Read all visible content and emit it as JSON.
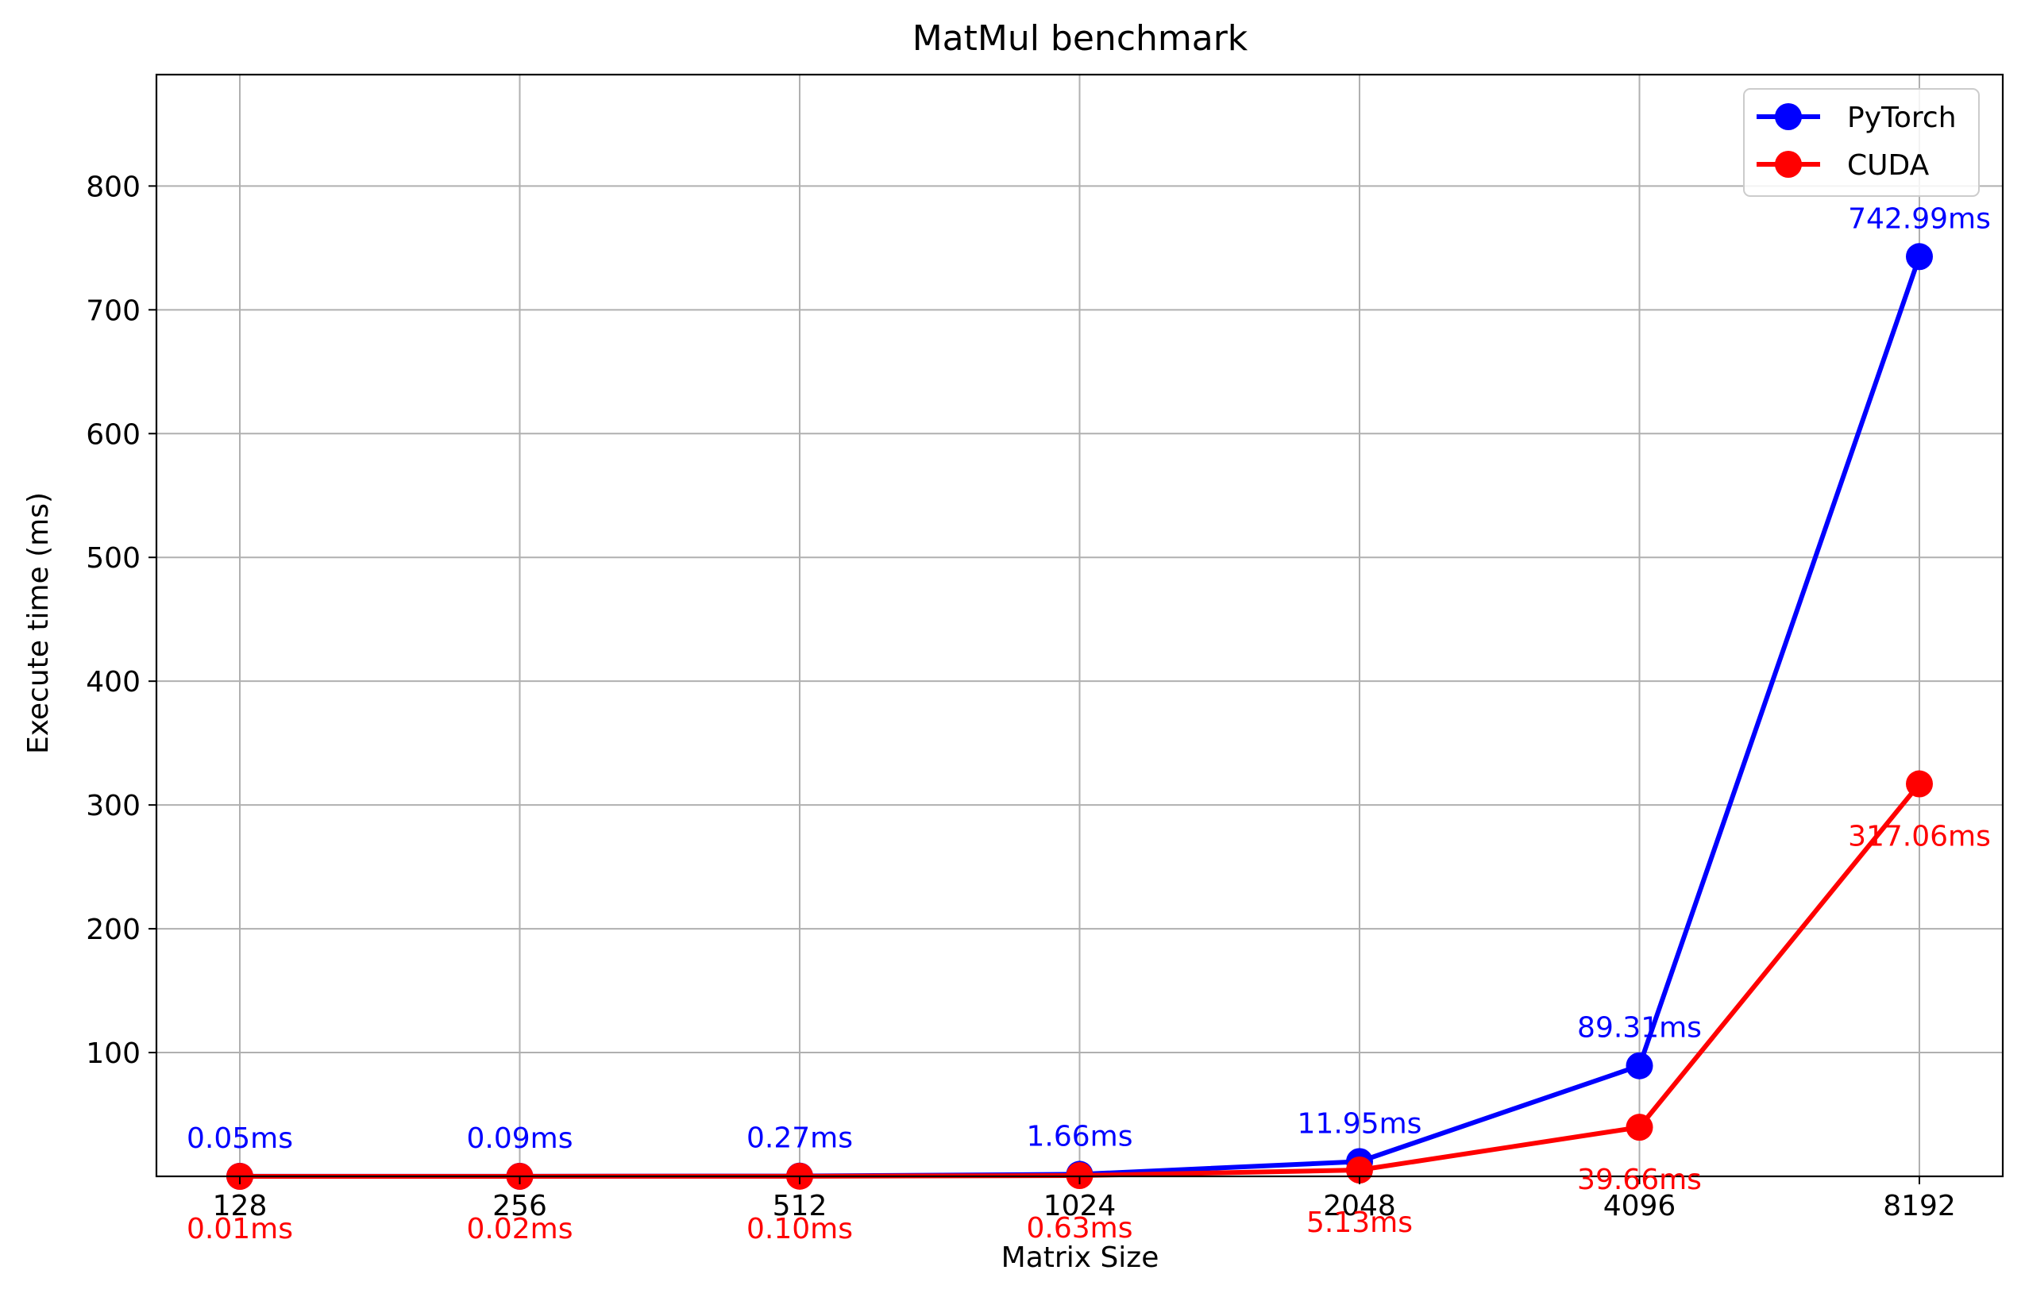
{
  "chart_data": {
    "type": "line",
    "title": "MatMul benchmark",
    "xlabel": "Matrix Size",
    "ylabel": "Execute time (ms)",
    "categories": [
      "128",
      "256",
      "512",
      "1024",
      "2048",
      "4096",
      "8192"
    ],
    "ylim": [
      0,
      890
    ],
    "yticks": [
      100,
      200,
      300,
      400,
      500,
      600,
      700,
      800
    ],
    "grid": true,
    "legend_position": "top-right",
    "series": [
      {
        "name": "PyTorch",
        "color": "#0000ff",
        "values": [
          0.05,
          0.09,
          0.27,
          1.66,
          11.95,
          89.31,
          742.99
        ],
        "labels": [
          "0.05ms",
          "0.09ms",
          "0.27ms",
          "1.66ms",
          "11.95ms",
          "89.31ms",
          "742.99ms"
        ],
        "label_placement": "above"
      },
      {
        "name": "CUDA",
        "color": "#ff0000",
        "values": [
          0.01,
          0.02,
          0.1,
          0.63,
          5.13,
          39.66,
          317.06
        ],
        "labels": [
          "0.01ms",
          "0.02ms",
          "0.10ms",
          "0.63ms",
          "5.13ms",
          "39.66ms",
          "317.06ms"
        ],
        "label_placement": "below"
      }
    ]
  }
}
